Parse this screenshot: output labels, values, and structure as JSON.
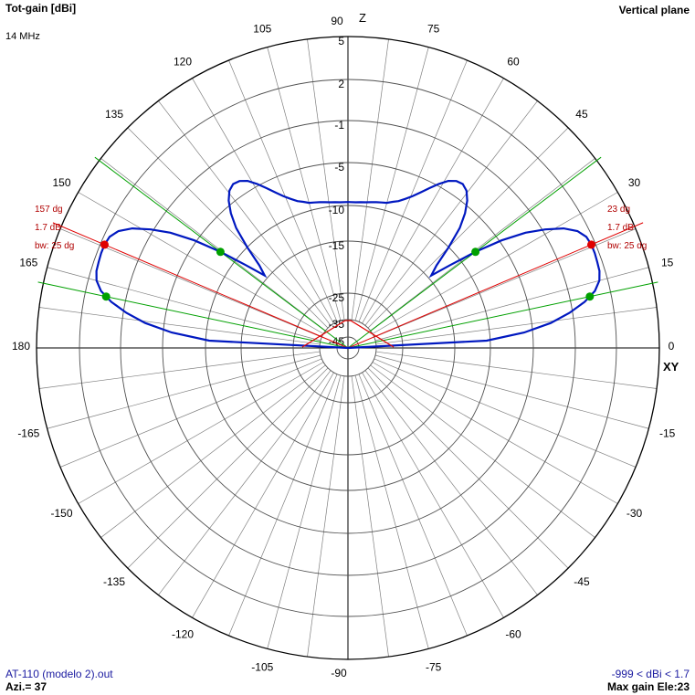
{
  "header": {
    "title": "Tot-gain [dBi]",
    "frequency": "14 MHz",
    "plane": "Vertical plane"
  },
  "footer": {
    "file": "AT-110 (modelo 2).out",
    "azimuth": "Azi.= 37",
    "range": "-999 < dBi < 1.7",
    "max_gain": "Max gain Ele:23"
  },
  "axes": {
    "z_label": "Z",
    "xy_label": "XY"
  },
  "markers": {
    "left": {
      "angle": "157 dg",
      "gain": "1.7 dB",
      "bw": "bw: 25 dg"
    },
    "right": {
      "angle": "23 dg",
      "gain": "1.7 dB",
      "bw": "bw: 25 dg"
    }
  },
  "colors": {
    "pattern": "#0018c0",
    "grid": "#808080",
    "max": "#e00000",
    "bw": "#00a000",
    "label_red": "#b00000"
  },
  "chart_data": {
    "type": "polar",
    "title": "Tot-gain [dBi]",
    "ring_labels": [
      "5",
      "2",
      "-1",
      "-5",
      "-10",
      "-15",
      "-25",
      "-35",
      "-45"
    ],
    "angle_labels": [
      "0",
      "15",
      "30",
      "45",
      "60",
      "75",
      "90",
      "105",
      "120",
      "135",
      "150",
      "165",
      "180",
      "-165",
      "-150",
      "-135",
      "-120",
      "-105",
      "-90",
      "-75",
      "-60",
      "-45",
      "-30",
      "-15"
    ],
    "pattern": {
      "elevation_deg": [
        0,
        3,
        5,
        7,
        9,
        11,
        13,
        15,
        17,
        19,
        21,
        23,
        25,
        27,
        29,
        31,
        33,
        35,
        37,
        39,
        41,
        43,
        45,
        47,
        49,
        51,
        53,
        55,
        57,
        59,
        61,
        63,
        65,
        67,
        69,
        71,
        73,
        75,
        77,
        79,
        81,
        83,
        85,
        87,
        90
      ],
      "gain_dbi": [
        -999,
        -10.5,
        -6.0,
        -3.2,
        -1.3,
        0.0,
        0.9,
        1.4,
        1.6,
        1.65,
        1.7,
        1.7,
        1.6,
        1.2,
        0.4,
        -0.8,
        -2.5,
        -4.8,
        -8.0,
        -11.5,
        -14.5,
        -13.0,
        -10.0,
        -7.5,
        -5.8,
        -4.6,
        -3.9,
        -3.6,
        -3.7,
        -4.1,
        -4.8,
        -5.7,
        -6.6,
        -7.4,
        -8.0,
        -8.5,
        -8.8,
        -9.1,
        -9.2,
        -9.3,
        -9.4,
        -9.5,
        -9.55,
        -9.6,
        -9.6
      ]
    },
    "max_gain": {
      "angles_deg": [
        23,
        157
      ],
      "gain_dbi": 1.7
    },
    "beamwidth": {
      "bw_deg": 25,
      "edges_deg": [
        12,
        37,
        143,
        168
      ]
    }
  }
}
